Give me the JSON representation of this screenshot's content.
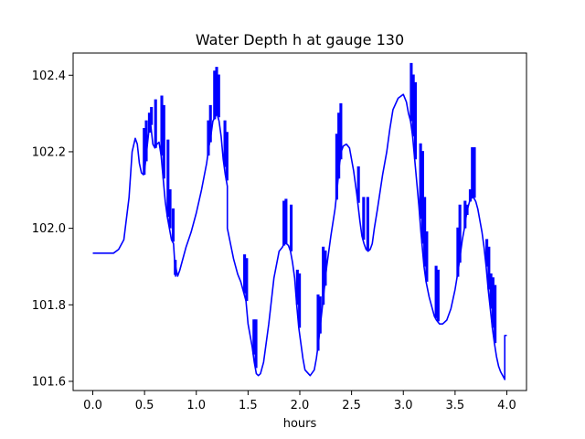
{
  "chart_data": {
    "type": "line",
    "title": "Water Depth h at gauge 130",
    "xlabel": "hours",
    "ylabel": "",
    "xlim": [
      -0.19,
      4.19
    ],
    "ylim": [
      101.576,
      102.458
    ],
    "xticks": [
      0.0,
      0.5,
      1.0,
      1.5,
      2.0,
      2.5,
      3.0,
      3.5,
      4.0
    ],
    "xtick_labels": [
      "0.0",
      "0.5",
      "1.0",
      "1.5",
      "2.0",
      "2.5",
      "3.0",
      "3.5",
      "4.0"
    ],
    "yticks": [
      101.6,
      101.8,
      102.0,
      102.2,
      102.4
    ],
    "ytick_labels": [
      "101.6",
      "101.8",
      "102.0",
      "102.2",
      "102.4"
    ],
    "grid": false,
    "legend": "none",
    "series": [
      {
        "color": "#0000ff",
        "x": [
          0.0,
          0.1,
          0.2,
          0.25,
          0.3,
          0.35,
          0.38,
          0.41,
          0.43,
          0.45,
          0.47,
          0.49,
          0.5,
          0.52,
          0.54,
          0.56,
          0.58,
          0.6,
          0.62,
          0.64,
          0.66,
          0.68,
          0.7,
          0.72,
          0.74,
          0.76,
          0.78,
          0.8,
          0.8,
          0.82,
          0.84,
          0.86,
          0.9,
          0.95,
          1.0,
          1.05,
          1.1,
          1.12,
          1.14,
          1.16,
          1.18,
          1.2,
          1.22,
          1.24,
          1.26,
          1.28,
          1.3,
          1.3,
          1.33,
          1.36,
          1.4,
          1.43,
          1.45,
          1.47,
          1.48,
          1.5,
          1.52,
          1.54,
          1.56,
          1.58,
          1.6,
          1.62,
          1.65,
          1.7,
          1.75,
          1.8,
          1.83,
          1.85,
          1.87,
          1.89,
          1.91,
          1.93,
          1.95,
          1.97,
          1.99,
          2.01,
          2.03,
          2.05,
          2.1,
          2.14,
          2.16,
          2.18,
          2.2,
          2.22,
          2.24,
          2.26,
          2.3,
          2.34,
          2.36,
          2.38,
          2.4,
          2.42,
          2.45,
          2.48,
          2.52,
          2.55,
          2.58,
          2.6,
          2.62,
          2.64,
          2.66,
          2.68,
          2.7,
          2.72,
          2.75,
          2.8,
          2.84,
          2.87,
          2.9,
          2.95,
          3.0,
          3.03,
          3.05,
          3.07,
          3.09,
          3.11,
          3.13,
          3.15,
          3.17,
          3.2,
          3.22,
          3.25,
          3.28,
          3.3,
          3.32,
          3.35,
          3.38,
          3.42,
          3.46,
          3.5,
          3.53,
          3.55,
          3.57,
          3.59,
          3.6,
          3.62,
          3.64,
          3.66,
          3.68,
          3.7,
          3.72,
          3.74,
          3.76,
          3.78,
          3.8,
          3.82,
          3.84,
          3.86,
          3.88,
          3.9,
          3.92,
          3.94,
          3.96,
          3.98,
          3.98,
          4.0
        ],
        "y": [
          101.935,
          101.935,
          101.935,
          101.945,
          101.97,
          102.08,
          102.2,
          102.235,
          102.22,
          102.17,
          102.145,
          102.14,
          102.15,
          102.2,
          102.25,
          102.27,
          102.22,
          102.21,
          102.22,
          102.225,
          102.19,
          102.13,
          102.07,
          102.03,
          102.0,
          101.97,
          101.96,
          101.875,
          101.9,
          101.875,
          101.89,
          101.91,
          101.95,
          101.99,
          102.04,
          102.1,
          102.17,
          102.21,
          102.24,
          102.28,
          102.29,
          102.3,
          102.28,
          102.24,
          102.18,
          102.14,
          102.11,
          102.0,
          101.96,
          101.92,
          101.88,
          101.86,
          101.84,
          101.82,
          101.81,
          101.75,
          101.72,
          101.69,
          101.65,
          101.62,
          101.615,
          101.62,
          101.65,
          101.75,
          101.87,
          101.94,
          101.95,
          101.96,
          101.96,
          101.955,
          101.94,
          101.91,
          101.87,
          101.8,
          101.74,
          101.7,
          101.66,
          101.63,
          101.615,
          101.63,
          101.66,
          101.7,
          101.75,
          101.8,
          101.85,
          101.9,
          101.98,
          102.05,
          102.1,
          102.16,
          102.2,
          102.215,
          102.22,
          102.21,
          102.15,
          102.09,
          102.02,
          101.98,
          101.96,
          101.945,
          101.94,
          101.945,
          101.96,
          102.0,
          102.05,
          102.14,
          102.2,
          102.26,
          102.31,
          102.34,
          102.35,
          102.33,
          102.3,
          102.28,
          102.24,
          102.18,
          102.12,
          102.06,
          101.99,
          101.9,
          101.86,
          101.82,
          101.79,
          101.77,
          101.76,
          101.75,
          101.75,
          101.76,
          101.79,
          101.84,
          101.89,
          101.93,
          101.97,
          102.0,
          102.02,
          102.05,
          102.07,
          102.08,
          102.08,
          102.07,
          102.05,
          102.02,
          101.99,
          101.95,
          101.9,
          101.84,
          101.79,
          101.74,
          101.7,
          101.665,
          101.64,
          101.625,
          101.615,
          101.605,
          101.72,
          101.72
        ]
      }
    ],
    "spikes": [
      [
        0.49,
        102.26
      ],
      [
        0.51,
        102.28
      ],
      [
        0.54,
        102.3
      ],
      [
        0.56,
        102.315
      ],
      [
        0.6,
        102.335
      ],
      [
        0.66,
        102.345
      ],
      [
        0.68,
        102.32
      ],
      [
        0.72,
        102.23
      ],
      [
        0.74,
        102.1
      ],
      [
        0.77,
        102.05
      ],
      [
        0.79,
        101.88
      ],
      [
        1.11,
        102.28
      ],
      [
        1.13,
        102.32
      ],
      [
        1.17,
        102.41
      ],
      [
        1.19,
        102.42
      ],
      [
        1.21,
        102.4
      ],
      [
        1.27,
        102.28
      ],
      [
        1.29,
        102.25
      ],
      [
        1.46,
        101.93
      ],
      [
        1.48,
        101.92
      ],
      [
        1.55,
        101.76
      ],
      [
        1.57,
        101.76
      ],
      [
        1.84,
        102.07
      ],
      [
        1.86,
        102.075
      ],
      [
        1.91,
        102.06
      ],
      [
        1.97,
        101.89
      ],
      [
        1.99,
        101.88
      ],
      [
        2.17,
        101.825
      ],
      [
        2.19,
        101.82
      ],
      [
        2.22,
        101.95
      ],
      [
        2.24,
        101.94
      ],
      [
        2.35,
        102.245
      ],
      [
        2.37,
        102.3
      ],
      [
        2.39,
        102.325
      ],
      [
        2.56,
        102.16
      ],
      [
        2.61,
        102.08
      ],
      [
        2.65,
        102.08
      ],
      [
        3.07,
        102.43
      ],
      [
        3.09,
        102.4
      ],
      [
        3.11,
        102.38
      ],
      [
        3.16,
        102.22
      ],
      [
        3.18,
        102.2
      ],
      [
        3.2,
        102.08
      ],
      [
        3.22,
        101.99
      ],
      [
        3.31,
        101.9
      ],
      [
        3.33,
        101.89
      ],
      [
        3.52,
        102.0
      ],
      [
        3.54,
        102.06
      ],
      [
        3.59,
        102.07
      ],
      [
        3.61,
        102.06
      ],
      [
        3.64,
        102.1
      ],
      [
        3.66,
        102.21
      ],
      [
        3.68,
        102.21
      ],
      [
        3.8,
        101.97
      ],
      [
        3.82,
        101.95
      ],
      [
        3.84,
        101.88
      ],
      [
        3.86,
        101.87
      ],
      [
        3.88,
        101.85
      ]
    ]
  }
}
